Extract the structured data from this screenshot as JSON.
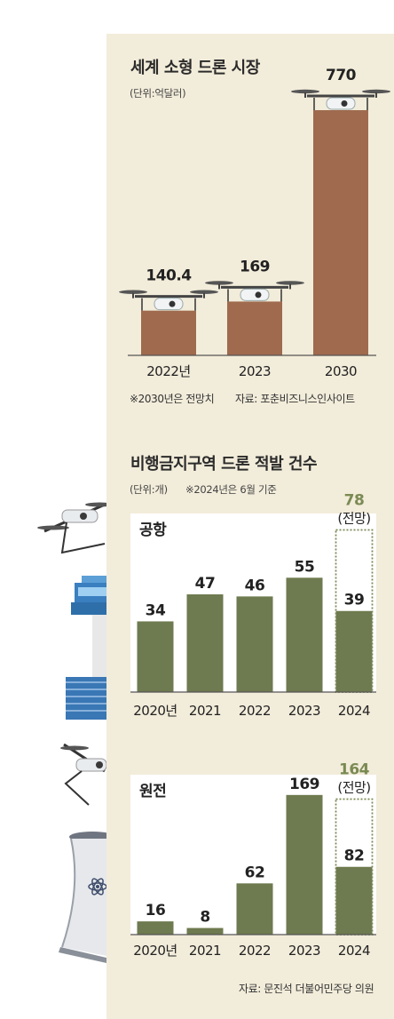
{
  "chart_data": [
    {
      "type": "bar",
      "title": "세계 소형 드론 시장",
      "unit": "(단위:억달러)",
      "categories": [
        "2022년",
        "2023",
        "2030"
      ],
      "values": [
        140.4,
        169,
        770
      ],
      "value_labels": [
        "140.4",
        "169",
        "770"
      ],
      "note": "※2030년은 전망치",
      "source": "자료: 포춘비즈니스인사이트",
      "bar_color": "#9f6a4e"
    },
    {
      "type": "bar",
      "title": "비행금지구역 드론 적발 건수",
      "unit": "(단위:개)",
      "note": "※2024년은 6월 기준",
      "bar_color": "#6e7a4f",
      "forecast_color": "#7a8a53",
      "panels": [
        {
          "label": "공항",
          "categories": [
            "2020년",
            "2021",
            "2022",
            "2023",
            "2024"
          ],
          "values": [
            34,
            47,
            46,
            55,
            39
          ],
          "value_labels": [
            "34",
            "47",
            "46",
            "55",
            "39"
          ],
          "forecast": {
            "value": 78,
            "label": "78",
            "note": "(전망)"
          }
        },
        {
          "label": "원전",
          "categories": [
            "2020년",
            "2021",
            "2022",
            "2023",
            "2024"
          ],
          "values": [
            16,
            8,
            62,
            169,
            82
          ],
          "value_labels": [
            "16",
            "8",
            "62",
            "169",
            "82"
          ],
          "forecast": {
            "value": 164,
            "label": "164",
            "note": "(전망)"
          }
        }
      ],
      "source": "자료: 문진석 더불어민주당 의원"
    }
  ]
}
